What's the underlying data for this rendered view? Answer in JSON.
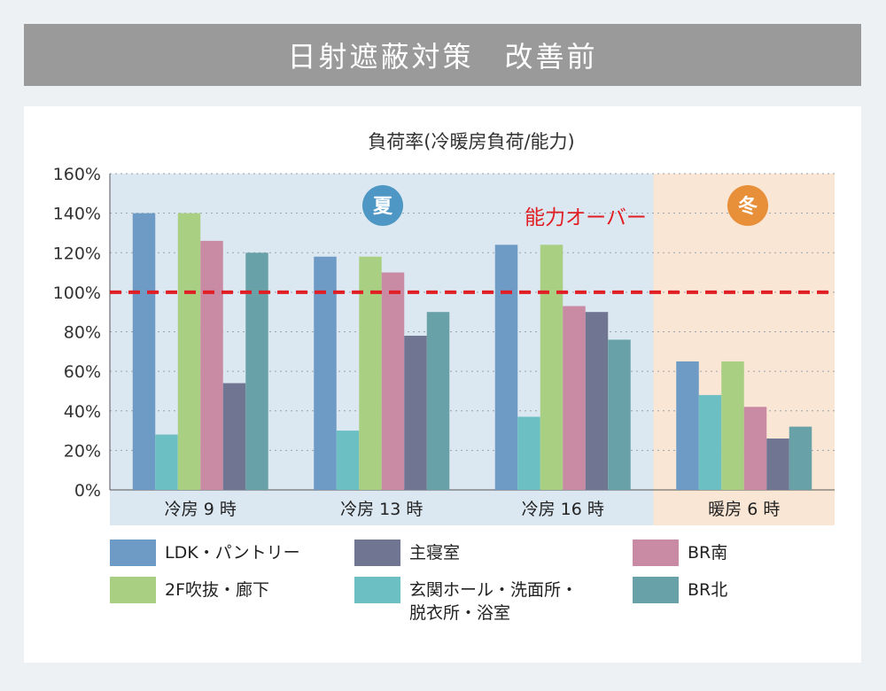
{
  "header": {
    "title": "日射遮蔽対策　改善前"
  },
  "chart_data": {
    "type": "bar",
    "title": "負荷率(冷暖房負荷/能力)",
    "categories": [
      "冷房 9 時",
      "冷房 13 時",
      "冷房 16 時",
      "暖房 6 時"
    ],
    "ylim": [
      0,
      160
    ],
    "yticks": [
      "0%",
      "20%",
      "40%",
      "60%",
      "80%",
      "100%",
      "120%",
      "140%",
      "160%"
    ],
    "grid": true,
    "series": [
      {
        "name": "LDK・パントリー",
        "color": "#6e9ac6",
        "values": [
          140,
          118,
          124,
          65
        ]
      },
      {
        "name": "玄関ホール・洗面所・脱衣所・浴室",
        "color": "#6cc0c4",
        "values": [
          28,
          30,
          37,
          48
        ]
      },
      {
        "name": "2F吹抜・廊下",
        "color": "#a8cf82",
        "values": [
          140,
          118,
          124,
          65
        ]
      },
      {
        "name": "BR南",
        "color": "#c98aa4",
        "values": [
          126,
          110,
          93,
          42
        ]
      },
      {
        "name": "主寝室",
        "color": "#707591",
        "values": [
          54,
          78,
          90,
          26
        ]
      },
      {
        "name": "BR北",
        "color": "#68a2a8",
        "values": [
          120,
          90,
          76,
          32
        ]
      }
    ],
    "reference_line": {
      "value": 100,
      "label": "能力オーバー",
      "color": "#e01e24"
    },
    "regions": [
      {
        "label": "夏",
        "categories": [
          0,
          1,
          2
        ],
        "color": "#dce8f1",
        "badge_color": "#4e97c4"
      },
      {
        "label": "冬",
        "categories": [
          3
        ],
        "color": "#f9e6d4",
        "badge_color": "#e88f3a"
      }
    ]
  },
  "legend": [
    {
      "label": "LDK・パントリー",
      "lines": [
        "LDK・パントリー"
      ],
      "color": "#6e9ac6"
    },
    {
      "label": "主寝室",
      "lines": [
        "主寝室"
      ],
      "color": "#707591"
    },
    {
      "label": "BR南",
      "lines": [
        "BR南"
      ],
      "color": "#c98aa4"
    },
    {
      "label": "2F吹抜・廊下",
      "lines": [
        "2F吹抜・廊下"
      ],
      "color": "#a8cf82"
    },
    {
      "label": "玄関ホール・洗面所・脱衣所・浴室",
      "lines": [
        "玄関ホール・洗面所・",
        "脱衣所・浴室"
      ],
      "color": "#6cc0c4"
    },
    {
      "label": "BR北",
      "lines": [
        "BR北"
      ],
      "color": "#68a2a8"
    }
  ]
}
